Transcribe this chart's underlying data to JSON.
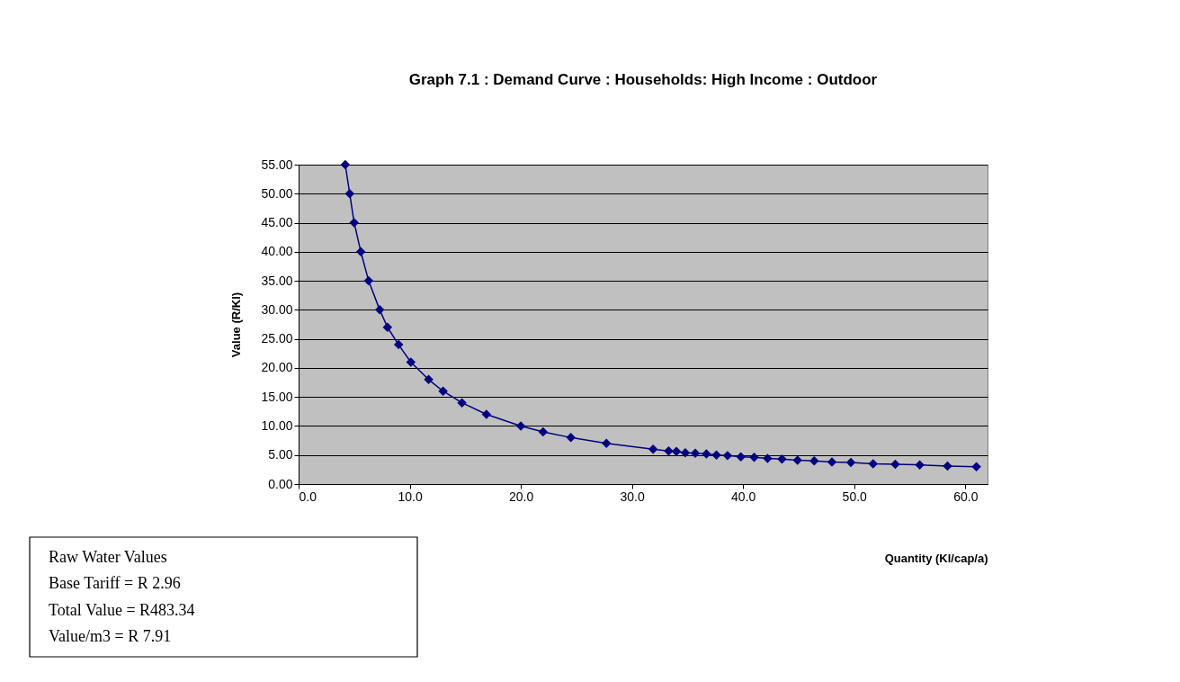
{
  "chart_data": {
    "type": "line",
    "title": "Graph 7.1 : Demand Curve : Households: High Income : Outdoor",
    "xlabel": "Quantity (Kl/cap/a)",
    "ylabel": "Value (R/Kl)",
    "x": [
      4.2,
      4.6,
      5.0,
      5.6,
      6.3,
      7.3,
      8.0,
      9.0,
      10.1,
      11.7,
      13.0,
      14.7,
      16.9,
      20.0,
      22.0,
      24.5,
      27.7,
      31.9,
      33.3,
      34.0,
      34.8,
      35.7,
      36.7,
      37.6,
      38.6,
      39.8,
      41.0,
      42.2,
      43.5,
      44.9,
      46.4,
      48.0,
      49.7,
      51.7,
      53.7,
      55.9,
      58.4,
      61.0
    ],
    "series": [
      {
        "color": "#000080",
        "values": [
          55.0,
          50.0,
          45.0,
          40.0,
          35.0,
          30.0,
          27.0,
          24.0,
          21.0,
          18.0,
          16.0,
          14.0,
          12.0,
          10.0,
          9.0,
          8.0,
          7.0,
          6.0,
          5.7,
          5.6,
          5.4,
          5.3,
          5.2,
          5.0,
          4.9,
          4.7,
          4.6,
          4.4,
          4.3,
          4.1,
          4.0,
          3.8,
          3.7,
          3.5,
          3.4,
          3.3,
          3.1,
          3.0
        ]
      }
    ],
    "xlim": [
      0,
      62
    ],
    "ylim": [
      0,
      55
    ],
    "xticks": [
      {
        "value": 0,
        "label": "0.0"
      },
      {
        "value": 10,
        "label": "10.0"
      },
      {
        "value": 20,
        "label": "20.0"
      },
      {
        "value": 30,
        "label": "30.0"
      },
      {
        "value": 40,
        "label": "40.0"
      },
      {
        "value": 50,
        "label": "50.0"
      },
      {
        "value": 60,
        "label": "60.0"
      }
    ],
    "yticks": [
      {
        "value": 0,
        "label": "0.00"
      },
      {
        "value": 5,
        "label": "5.00"
      },
      {
        "value": 10,
        "label": "10.00"
      },
      {
        "value": 15,
        "label": "15.00"
      },
      {
        "value": 20,
        "label": "20.00"
      },
      {
        "value": 25,
        "label": "25.00"
      },
      {
        "value": 30,
        "label": "30.00"
      },
      {
        "value": 35,
        "label": "35.00"
      },
      {
        "value": 40,
        "label": "40.00"
      },
      {
        "value": 45,
        "label": "45.00"
      },
      {
        "value": 50,
        "label": "50.00"
      },
      {
        "value": 55,
        "label": "55.00"
      }
    ],
    "grid": "y",
    "legend": false,
    "marker": "diamond",
    "line_style": "solid",
    "annotations": [
      "Raw Water Values",
      "Base Tariff          =          R   2.96",
      "Total Value          =          R483.34",
      "Value/m3             =          R   7.91"
    ]
  }
}
